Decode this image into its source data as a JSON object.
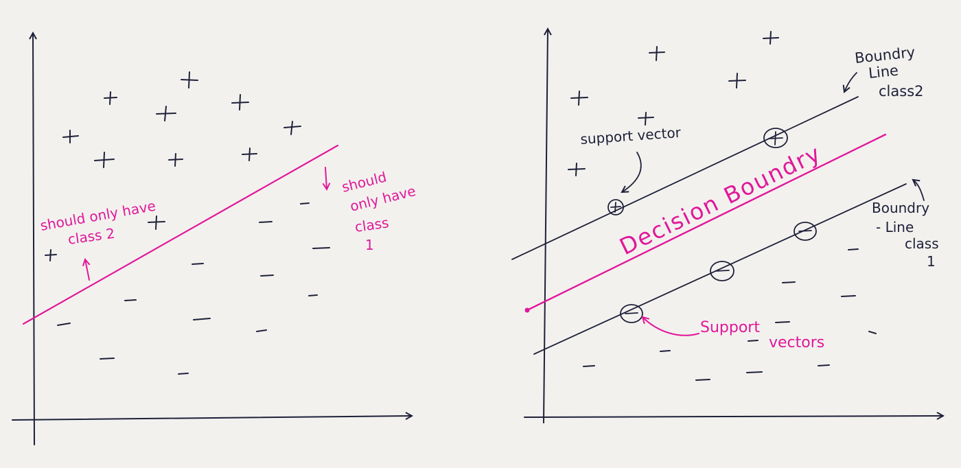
{
  "colors": {
    "ink": "#1d2038",
    "accent": "#e0189a",
    "paper": "#f3f1ee"
  },
  "left": {
    "label_class2": [
      "should only have",
      "class 2"
    ],
    "label_class1": [
      "should",
      "only have",
      "class",
      "1"
    ]
  },
  "right": {
    "label_support_vector": "support vector",
    "label_boundary_class2": [
      "Boundry",
      "Line",
      "class2"
    ],
    "label_decision": "Decision Boundry",
    "label_boundary_class1": [
      "Boundry",
      "- Line",
      "class",
      "1"
    ],
    "label_support_vectors": [
      "Support",
      "vectors"
    ]
  }
}
